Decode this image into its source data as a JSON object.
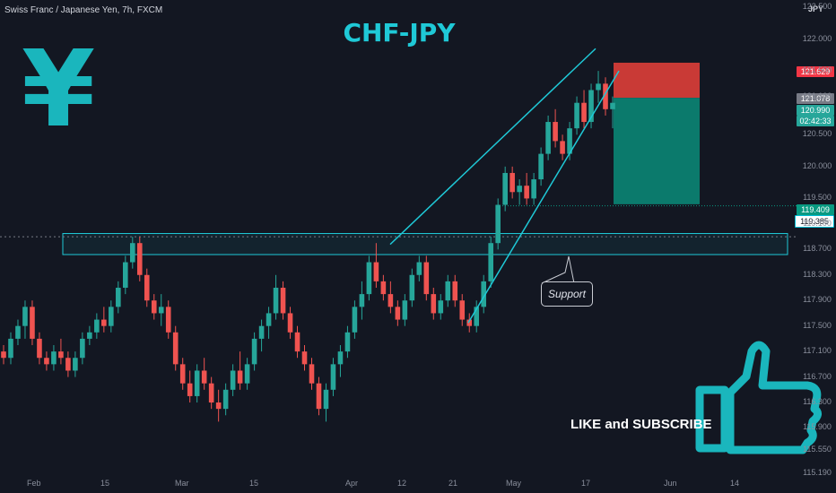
{
  "header": {
    "symbol_line": "Swiss Franc / Japanese Yen, 7h, FXCM",
    "title": "CHF-JPY",
    "currency": "JPY"
  },
  "annotations": {
    "support_label": "Support",
    "cta": "LIKE and SUBSCRIBE",
    "yen_symbol": "¥"
  },
  "price_labels": [
    {
      "value": "121.629",
      "color": "#f23645"
    },
    {
      "value": "121.078",
      "color": "#787b86"
    },
    {
      "value": "120.990",
      "color": "#26a69a"
    },
    {
      "value": "02:42:33",
      "color": "#26a69a"
    },
    {
      "value": "119.409",
      "color": "#089981"
    },
    {
      "value": "119.385",
      "color": "#00bcd4"
    }
  ],
  "colors": {
    "up": "#26a69a",
    "down": "#ef5350",
    "accent": "#1fc9d7",
    "stop_zone": "#c93a36",
    "target_zone": "#0b7a6c"
  },
  "chart_data": {
    "type": "candlestick",
    "title": "CHF-JPY",
    "ylim": [
      115.19,
      122.5
    ],
    "y_ticks": [
      "122.500",
      "122.000",
      "121.500",
      "121.100",
      "120.500",
      "120.000",
      "119.500",
      "119.100",
      "118.700",
      "118.300",
      "117.900",
      "117.500",
      "117.100",
      "116.700",
      "116.300",
      "115.900",
      "115.550",
      "115.190"
    ],
    "x_ticks": [
      "Feb",
      "15",
      "Mar",
      "15",
      "Apr",
      "12",
      "21",
      "May",
      "17",
      "Jun",
      "14"
    ],
    "series": [
      {
        "values": [
          [
            117.1,
            117.2,
            116.9,
            117.0
          ],
          [
            117.0,
            117.4,
            116.9,
            117.3
          ],
          [
            117.3,
            117.6,
            117.2,
            117.5
          ],
          [
            117.5,
            117.9,
            117.3,
            117.8
          ],
          [
            117.8,
            117.9,
            117.2,
            117.3
          ],
          [
            117.3,
            117.4,
            116.9,
            117.0
          ],
          [
            117.0,
            117.1,
            116.8,
            116.9
          ],
          [
            116.9,
            117.2,
            116.8,
            117.1
          ],
          [
            117.1,
            117.3,
            116.9,
            117.0
          ],
          [
            117.0,
            117.1,
            116.7,
            116.8
          ],
          [
            116.8,
            117.1,
            116.7,
            117.0
          ],
          [
            117.0,
            117.4,
            116.9,
            117.3
          ],
          [
            117.3,
            117.5,
            117.2,
            117.4
          ],
          [
            117.4,
            117.7,
            117.3,
            117.6
          ],
          [
            117.6,
            117.8,
            117.4,
            117.5
          ],
          [
            117.5,
            117.9,
            117.4,
            117.8
          ],
          [
            117.8,
            118.2,
            117.7,
            118.1
          ],
          [
            118.1,
            118.6,
            118.0,
            118.5
          ],
          [
            118.5,
            118.9,
            118.4,
            118.8
          ],
          [
            118.8,
            118.9,
            118.2,
            118.3
          ],
          [
            118.3,
            118.4,
            117.8,
            117.9
          ],
          [
            117.9,
            118.0,
            117.6,
            117.7
          ],
          [
            117.7,
            118.0,
            117.5,
            117.8
          ],
          [
            117.8,
            117.9,
            117.3,
            117.4
          ],
          [
            117.4,
            117.5,
            116.8,
            116.9
          ],
          [
            116.9,
            117.0,
            116.5,
            116.6
          ],
          [
            116.6,
            116.8,
            116.3,
            116.4
          ],
          [
            116.4,
            116.9,
            116.3,
            116.8
          ],
          [
            116.8,
            117.0,
            116.5,
            116.6
          ],
          [
            116.6,
            116.7,
            116.2,
            116.3
          ],
          [
            116.3,
            116.5,
            116.0,
            116.2
          ],
          [
            116.2,
            116.6,
            116.1,
            116.5
          ],
          [
            116.5,
            116.9,
            116.4,
            116.8
          ],
          [
            116.8,
            117.1,
            116.5,
            116.6
          ],
          [
            116.6,
            117.0,
            116.5,
            116.9
          ],
          [
            116.9,
            117.4,
            116.8,
            117.3
          ],
          [
            117.3,
            117.6,
            117.1,
            117.5
          ],
          [
            117.5,
            117.8,
            117.3,
            117.7
          ],
          [
            117.7,
            118.3,
            117.6,
            118.1
          ],
          [
            118.1,
            118.2,
            117.6,
            117.7
          ],
          [
            117.7,
            117.8,
            117.3,
            117.4
          ],
          [
            117.4,
            117.5,
            117.0,
            117.1
          ],
          [
            117.1,
            117.2,
            116.8,
            116.9
          ],
          [
            116.9,
            117.0,
            116.5,
            116.6
          ],
          [
            116.6,
            116.7,
            116.1,
            116.2
          ],
          [
            116.2,
            116.6,
            116.0,
            116.5
          ],
          [
            116.5,
            117.0,
            116.4,
            116.9
          ],
          [
            116.9,
            117.2,
            116.7,
            117.1
          ],
          [
            117.1,
            117.5,
            117.0,
            117.4
          ],
          [
            117.4,
            117.9,
            117.3,
            117.8
          ],
          [
            117.8,
            118.2,
            117.6,
            118.0
          ],
          [
            118.0,
            118.6,
            117.9,
            118.5
          ],
          [
            118.5,
            118.8,
            118.1,
            118.2
          ],
          [
            118.2,
            118.3,
            117.9,
            118.0
          ],
          [
            118.0,
            118.2,
            117.7,
            117.8
          ],
          [
            117.8,
            117.9,
            117.5,
            117.6
          ],
          [
            117.6,
            118.0,
            117.5,
            117.9
          ],
          [
            117.9,
            118.4,
            117.8,
            118.3
          ],
          [
            118.3,
            118.6,
            118.2,
            118.5
          ],
          [
            118.5,
            118.6,
            117.9,
            118.0
          ],
          [
            118.0,
            118.1,
            117.6,
            117.7
          ],
          [
            117.7,
            118.0,
            117.6,
            117.9
          ],
          [
            117.9,
            118.3,
            117.8,
            118.2
          ],
          [
            118.2,
            118.3,
            117.8,
            117.9
          ],
          [
            117.9,
            118.0,
            117.5,
            117.6
          ],
          [
            117.6,
            117.7,
            117.4,
            117.5
          ],
          [
            117.5,
            117.9,
            117.4,
            117.8
          ],
          [
            117.8,
            118.3,
            117.7,
            118.2
          ],
          [
            118.2,
            118.9,
            118.1,
            118.8
          ],
          [
            118.8,
            119.5,
            118.7,
            119.4
          ],
          [
            119.4,
            120.0,
            119.3,
            119.9
          ],
          [
            119.9,
            120.0,
            119.5,
            119.6
          ],
          [
            119.6,
            119.8,
            119.4,
            119.7
          ],
          [
            119.7,
            119.9,
            119.4,
            119.5
          ],
          [
            119.5,
            119.9,
            119.4,
            119.8
          ],
          [
            119.8,
            120.3,
            119.7,
            120.2
          ],
          [
            120.2,
            120.8,
            120.1,
            120.7
          ],
          [
            120.7,
            120.9,
            120.3,
            120.4
          ],
          [
            120.4,
            120.5,
            120.1,
            120.2
          ],
          [
            120.2,
            120.7,
            120.1,
            120.6
          ],
          [
            120.6,
            121.1,
            120.5,
            121.0
          ],
          [
            121.0,
            121.2,
            120.6,
            120.7
          ],
          [
            120.7,
            121.3,
            120.6,
            121.2
          ],
          [
            121.2,
            121.5,
            121.0,
            121.3
          ],
          [
            121.3,
            121.4,
            120.8,
            120.9
          ],
          [
            120.9,
            121.1,
            120.6,
            121.0
          ]
        ]
      }
    ],
    "trade_zones": {
      "entry": 121.078,
      "stop": 121.629,
      "target": 119.409
    },
    "support_zone": [
      118.62,
      118.95
    ],
    "current_price": 120.99,
    "marked_level": 119.385
  }
}
